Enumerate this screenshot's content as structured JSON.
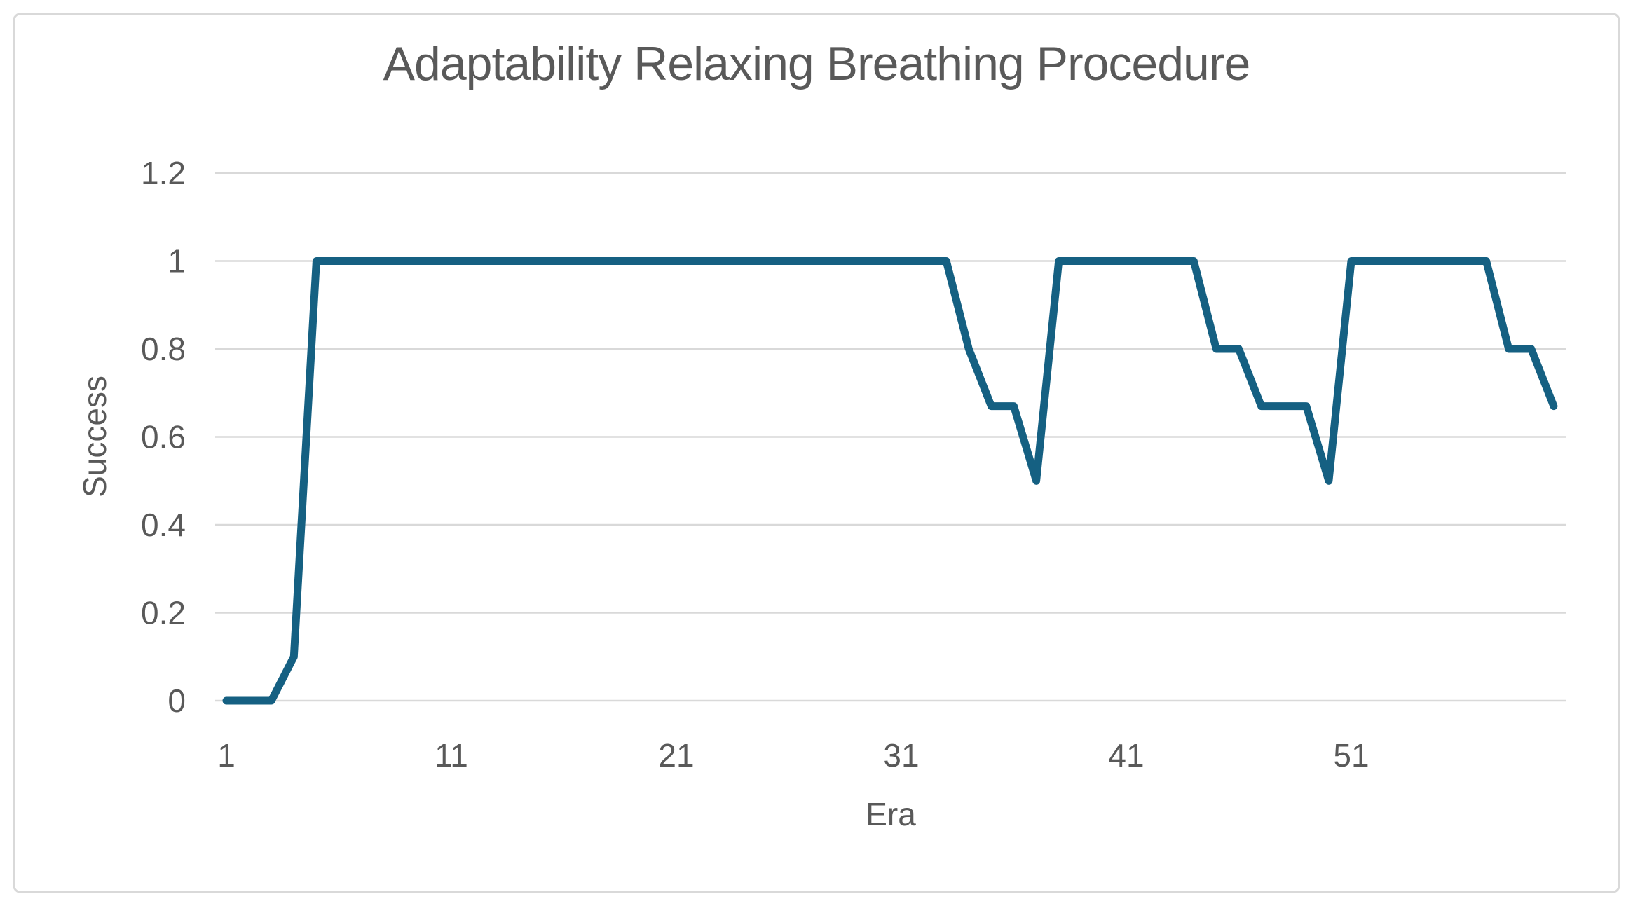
{
  "chart_data": {
    "type": "line",
    "title": "Adaptability Relaxing Breathing Procedure",
    "xlabel": "Era",
    "ylabel": "Success",
    "x": [
      1,
      2,
      3,
      4,
      5,
      6,
      7,
      8,
      9,
      10,
      11,
      12,
      13,
      14,
      15,
      16,
      17,
      18,
      19,
      20,
      21,
      22,
      23,
      24,
      25,
      26,
      27,
      28,
      29,
      30,
      31,
      32,
      33,
      34,
      35,
      36,
      37,
      38,
      39,
      40,
      41,
      42,
      43,
      44,
      45,
      46,
      47,
      48,
      49,
      50,
      51,
      52,
      53,
      54,
      55,
      56,
      57,
      58,
      59,
      60
    ],
    "values": [
      0,
      0,
      0,
      0.1,
      1,
      1,
      1,
      1,
      1,
      1,
      1,
      1,
      1,
      1,
      1,
      1,
      1,
      1,
      1,
      1,
      1,
      1,
      1,
      1,
      1,
      1,
      1,
      1,
      1,
      1,
      1,
      1,
      1,
      0.8,
      0.67,
      0.67,
      0.5,
      1,
      1,
      1,
      1,
      1,
      1,
      1,
      0.8,
      0.8,
      0.67,
      0.67,
      0.67,
      0.5,
      1,
      1,
      1,
      1,
      1,
      1,
      1,
      0.8,
      0.8,
      0.67
    ],
    "series_name": "Success",
    "xticks": [
      1,
      11,
      21,
      31,
      41,
      51
    ],
    "yticks": [
      0,
      0.2,
      0.4,
      0.6,
      0.8,
      1,
      1.2
    ],
    "xlim": [
      1,
      60
    ],
    "ylim": [
      0,
      1.2
    ],
    "grid": true,
    "legend": false,
    "colors": {
      "line": "#156082",
      "grid": "#D9D9D9",
      "text": "#595959",
      "frame_border": "#D9D9D9",
      "background": "#FFFFFF"
    }
  }
}
